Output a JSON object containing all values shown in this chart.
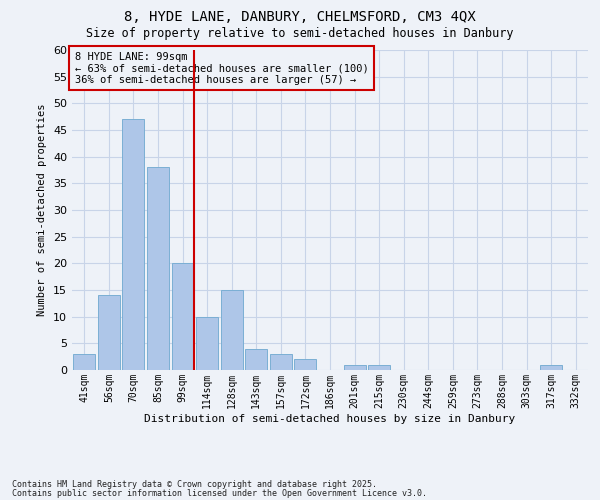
{
  "title_line1": "8, HYDE LANE, DANBURY, CHELMSFORD, CM3 4QX",
  "title_line2": "Size of property relative to semi-detached houses in Danbury",
  "xlabel": "Distribution of semi-detached houses by size in Danbury",
  "ylabel": "Number of semi-detached properties",
  "categories": [
    "41sqm",
    "56sqm",
    "70sqm",
    "85sqm",
    "99sqm",
    "114sqm",
    "128sqm",
    "143sqm",
    "157sqm",
    "172sqm",
    "186sqm",
    "201sqm",
    "215sqm",
    "230sqm",
    "244sqm",
    "259sqm",
    "273sqm",
    "288sqm",
    "303sqm",
    "317sqm",
    "332sqm"
  ],
  "values": [
    3,
    14,
    47,
    38,
    20,
    10,
    15,
    4,
    3,
    2,
    0,
    1,
    1,
    0,
    0,
    0,
    0,
    0,
    0,
    1,
    0
  ],
  "bar_color": "#aec6e8",
  "bar_edgecolor": "#7bafd4",
  "vline_x_index": 4,
  "vline_color": "#cc0000",
  "annotation_title": "8 HYDE LANE: 99sqm",
  "annotation_line2": "← 63% of semi-detached houses are smaller (100)",
  "annotation_line3": "36% of semi-detached houses are larger (57) →",
  "annotation_box_edgecolor": "#cc0000",
  "ylim": [
    0,
    60
  ],
  "yticks": [
    0,
    5,
    10,
    15,
    20,
    25,
    30,
    35,
    40,
    45,
    50,
    55,
    60
  ],
  "footnote_line1": "Contains HM Land Registry data © Crown copyright and database right 2025.",
  "footnote_line2": "Contains public sector information licensed under the Open Government Licence v3.0.",
  "bg_color": "#eef2f8",
  "grid_color": "#c8d4e8"
}
